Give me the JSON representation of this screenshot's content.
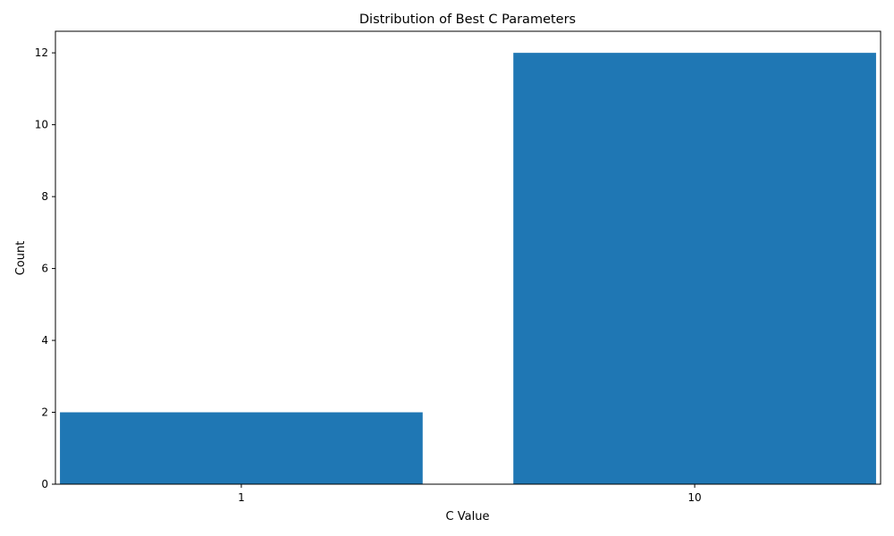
{
  "chart_data": {
    "type": "bar",
    "title": "Distribution of Best C Parameters",
    "xlabel": "C Value",
    "ylabel": "Count",
    "categories": [
      "1",
      "10"
    ],
    "values": [
      2,
      12
    ],
    "ylim": [
      0,
      12.6
    ],
    "yticks": [
      0,
      2,
      4,
      6,
      8,
      10,
      12
    ],
    "bar_color": "#1f77b4",
    "grid": false,
    "legend": "none"
  }
}
